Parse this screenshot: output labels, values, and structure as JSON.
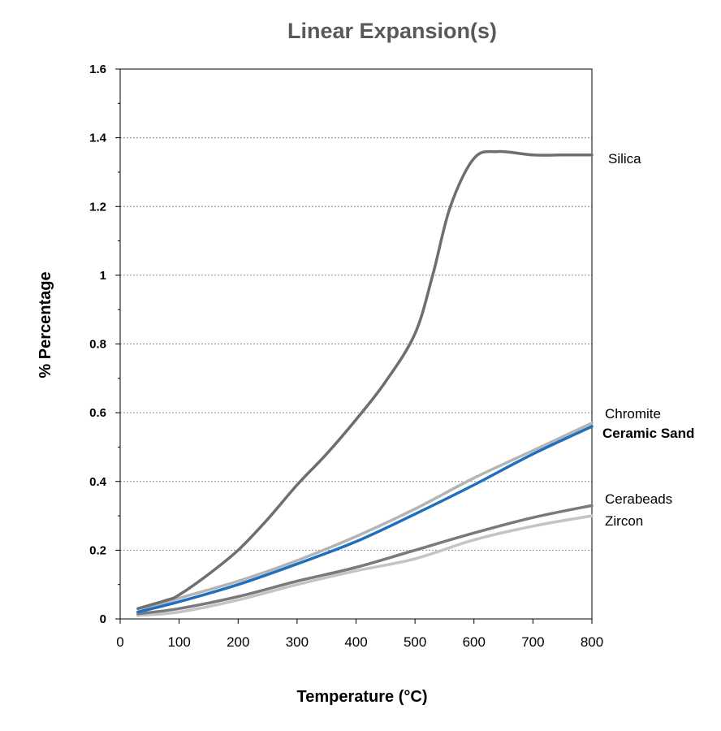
{
  "chart_data": {
    "type": "line",
    "title": "Linear Expansion(s)",
    "xlabel": "Temperature (°C)",
    "ylabel": "% Percentage",
    "xlim": [
      0,
      800
    ],
    "ylim": [
      0,
      1.6
    ],
    "x_ticks": [
      "0",
      "100",
      "200",
      "300",
      "400",
      "500",
      "600",
      "700",
      "800"
    ],
    "y_ticks": [
      "0",
      "0.2",
      "0.4",
      "0.6",
      "0.8",
      "1",
      "1.2",
      "1.4",
      "1.6"
    ],
    "grid": "horizontal dotted",
    "legend": "right-side labels",
    "series": [
      {
        "name": "Silica",
        "color": "#6e6e6e",
        "label_bold": false,
        "x": [
          30,
          80,
          100,
          150,
          200,
          250,
          300,
          350,
          400,
          450,
          500,
          530,
          560,
          600,
          640,
          700,
          750,
          800
        ],
        "y": [
          0.03,
          0.055,
          0.07,
          0.13,
          0.2,
          0.29,
          0.39,
          0.48,
          0.58,
          0.69,
          0.83,
          1.0,
          1.2,
          1.34,
          1.36,
          1.35,
          1.35,
          1.35
        ]
      },
      {
        "name": "Chromite",
        "color": "#b4b4b4",
        "label_bold": false,
        "x": [
          30,
          100,
          200,
          300,
          400,
          500,
          600,
          700,
          800
        ],
        "y": [
          0.02,
          0.06,
          0.11,
          0.17,
          0.24,
          0.32,
          0.41,
          0.49,
          0.57
        ]
      },
      {
        "name": "Ceramic Sand",
        "color": "#1f6fbf",
        "label_bold": true,
        "x": [
          30,
          100,
          200,
          300,
          400,
          500,
          600,
          700,
          800
        ],
        "y": [
          0.02,
          0.05,
          0.1,
          0.16,
          0.225,
          0.305,
          0.39,
          0.48,
          0.56
        ]
      },
      {
        "name": "Cerabeads",
        "color": "#7a7a7a",
        "label_bold": false,
        "x": [
          30,
          100,
          200,
          300,
          400,
          500,
          600,
          700,
          800
        ],
        "y": [
          0.015,
          0.03,
          0.065,
          0.11,
          0.15,
          0.2,
          0.25,
          0.295,
          0.33
        ]
      },
      {
        "name": "Zircon",
        "color": "#c4c4c4",
        "label_bold": false,
        "x": [
          30,
          100,
          200,
          300,
          400,
          500,
          600,
          700,
          800
        ],
        "y": [
          0.01,
          0.02,
          0.055,
          0.1,
          0.14,
          0.175,
          0.23,
          0.27,
          0.3
        ]
      }
    ]
  }
}
